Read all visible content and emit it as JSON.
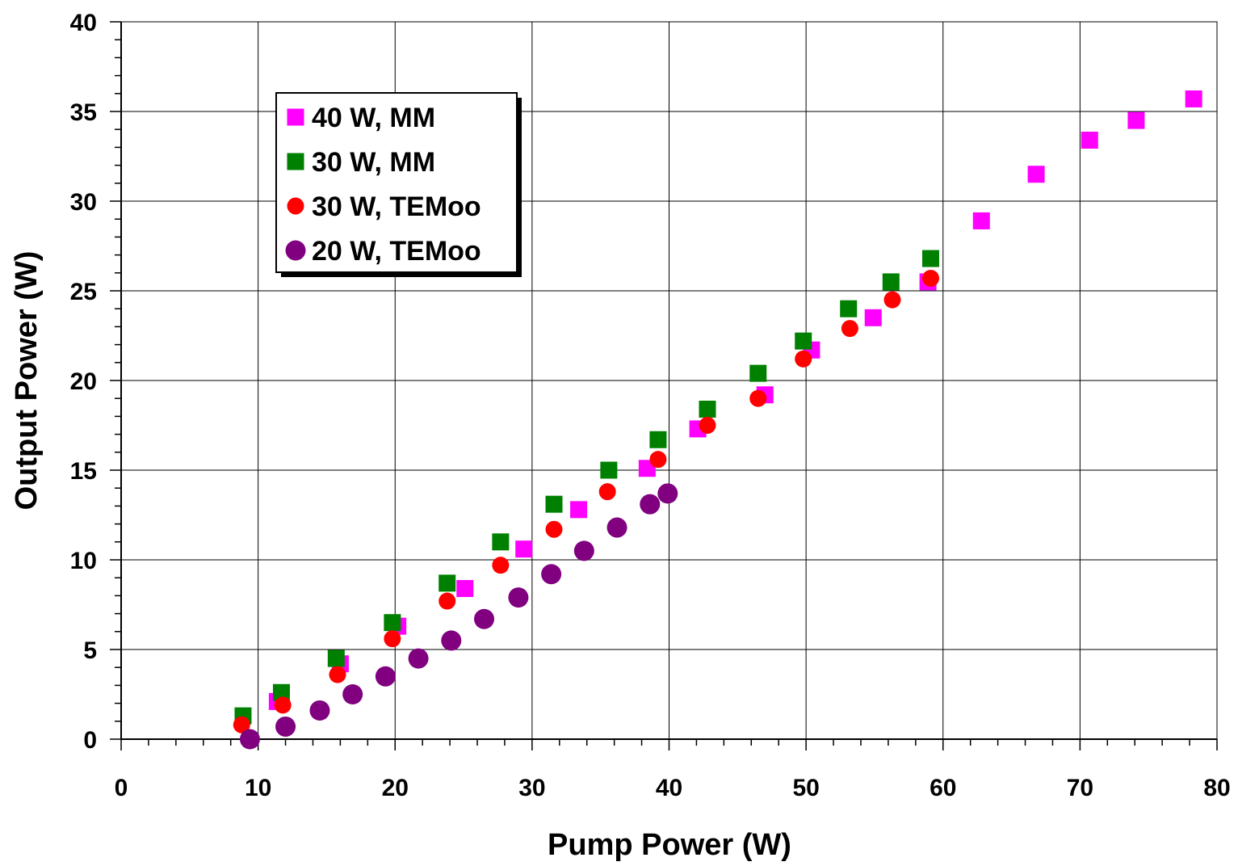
{
  "chart_data": {
    "type": "scatter",
    "title": "",
    "xlabel": "Pump Power (W)",
    "ylabel": "Output Power (W)",
    "xlim": [
      0,
      80
    ],
    "ylim": [
      0,
      40
    ],
    "x_ticks": [
      "0",
      "10",
      "20",
      "30",
      "40",
      "50",
      "60",
      "70",
      "80"
    ],
    "y_ticks": [
      "0",
      "5",
      "10",
      "15",
      "20",
      "25",
      "30",
      "35",
      "40"
    ],
    "grid": true,
    "legend_position": "upper-left",
    "series": [
      {
        "name": "40 W, MM",
        "marker": "square",
        "color": "#ff00ff",
        "points": [
          [
            11.4,
            2.1
          ],
          [
            16.0,
            4.2
          ],
          [
            20.2,
            6.3
          ],
          [
            25.1,
            8.4
          ],
          [
            29.4,
            10.6
          ],
          [
            33.4,
            12.8
          ],
          [
            38.4,
            15.1
          ],
          [
            42.1,
            17.3
          ],
          [
            47.0,
            19.2
          ],
          [
            50.4,
            21.7
          ],
          [
            54.9,
            23.5
          ],
          [
            58.9,
            25.5
          ],
          [
            62.8,
            28.9
          ],
          [
            66.8,
            31.5
          ],
          [
            70.7,
            33.4
          ],
          [
            74.1,
            34.5
          ],
          [
            78.3,
            35.7
          ]
        ]
      },
      {
        "name": "30 W, MM",
        "marker": "square",
        "color": "#008000",
        "points": [
          [
            8.9,
            1.3
          ],
          [
            11.7,
            2.6
          ],
          [
            15.7,
            4.5
          ],
          [
            19.8,
            6.5
          ],
          [
            23.8,
            8.7
          ],
          [
            27.7,
            11.0
          ],
          [
            31.6,
            13.1
          ],
          [
            35.6,
            15.0
          ],
          [
            39.2,
            16.7
          ],
          [
            42.8,
            18.4
          ],
          [
            46.5,
            20.4
          ],
          [
            49.8,
            22.2
          ],
          [
            53.1,
            24.0
          ],
          [
            56.2,
            25.5
          ],
          [
            59.1,
            26.8
          ]
        ]
      },
      {
        "name": "30 W, TEMoo",
        "marker": "circle",
        "color": "#ff0000",
        "points": [
          [
            8.8,
            0.8
          ],
          [
            11.8,
            1.9
          ],
          [
            15.8,
            3.6
          ],
          [
            19.8,
            5.6
          ],
          [
            23.8,
            7.7
          ],
          [
            27.7,
            9.7
          ],
          [
            31.6,
            11.7
          ],
          [
            35.5,
            13.8
          ],
          [
            39.2,
            15.6
          ],
          [
            42.8,
            17.5
          ],
          [
            46.5,
            19.0
          ],
          [
            49.8,
            21.2
          ],
          [
            53.2,
            22.9
          ],
          [
            56.3,
            24.5
          ],
          [
            59.1,
            25.7
          ]
        ]
      },
      {
        "name": "20 W, TEMoo",
        "marker": "circle",
        "color": "#800080",
        "points": [
          [
            9.4,
            0.0
          ],
          [
            12.0,
            0.7
          ],
          [
            14.5,
            1.6
          ],
          [
            16.9,
            2.5
          ],
          [
            19.3,
            3.5
          ],
          [
            21.7,
            4.5
          ],
          [
            24.1,
            5.5
          ],
          [
            26.5,
            6.7
          ],
          [
            29.0,
            7.9
          ],
          [
            31.4,
            9.2
          ],
          [
            33.8,
            10.5
          ],
          [
            36.2,
            11.8
          ],
          [
            38.6,
            13.1
          ],
          [
            39.9,
            13.7
          ]
        ]
      }
    ]
  }
}
